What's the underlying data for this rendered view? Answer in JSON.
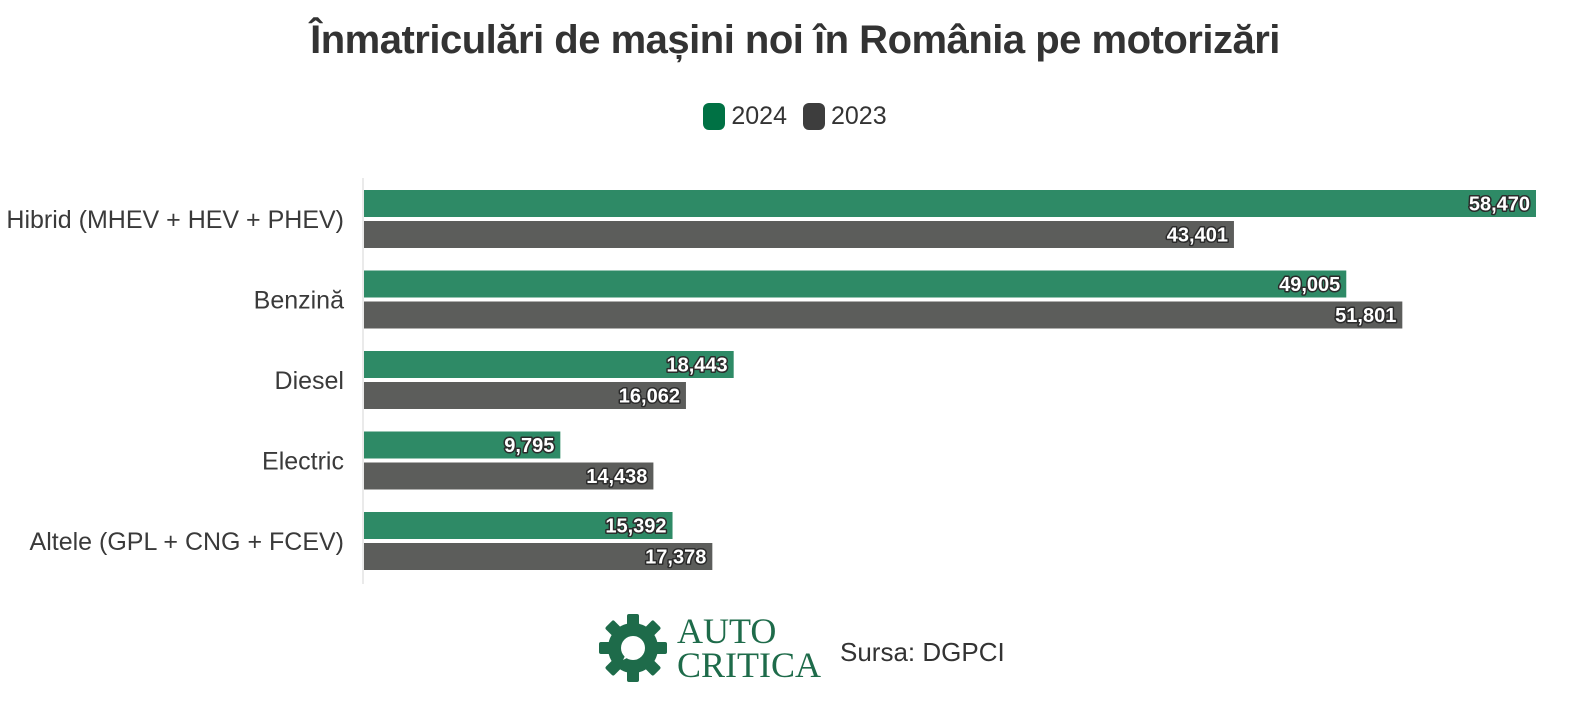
{
  "title": "Înmatriculări de mașini noi în România pe motorizări",
  "legend": [
    {
      "label": "2024",
      "color": "#007144"
    },
    {
      "label": "2023",
      "color": "#3d3d3d"
    }
  ],
  "chart_data": {
    "type": "bar",
    "orientation": "horizontal",
    "title": "Înmatriculări de mașini noi în România pe motorizări",
    "categories": [
      "Hibrid (MHEV + HEV + PHEV)",
      "Benzină",
      "Diesel",
      "Electric",
      "Altele (GPL + CNG + FCEV)"
    ],
    "series": [
      {
        "name": "2024",
        "color": "#2e8a66",
        "values": [
          58470,
          49005,
          18443,
          9795,
          15392
        ],
        "labels": [
          "58,470",
          "49,005",
          "18,443",
          "9,795",
          "15,392"
        ]
      },
      {
        "name": "2023",
        "color": "#5c5d5b",
        "values": [
          43401,
          51801,
          16062,
          14438,
          17378
        ],
        "labels": [
          "43,401",
          "51,801",
          "16,062",
          "14,438",
          "17,378"
        ]
      }
    ],
    "xlim": [
      0,
      60000
    ],
    "grid": false,
    "legend_position": "top-center"
  },
  "footer": {
    "logo_line1": "AUTO",
    "logo_line2": "CRITICA",
    "logo_color": "#1e6b4a",
    "source": "Sursa: DGPCI"
  }
}
